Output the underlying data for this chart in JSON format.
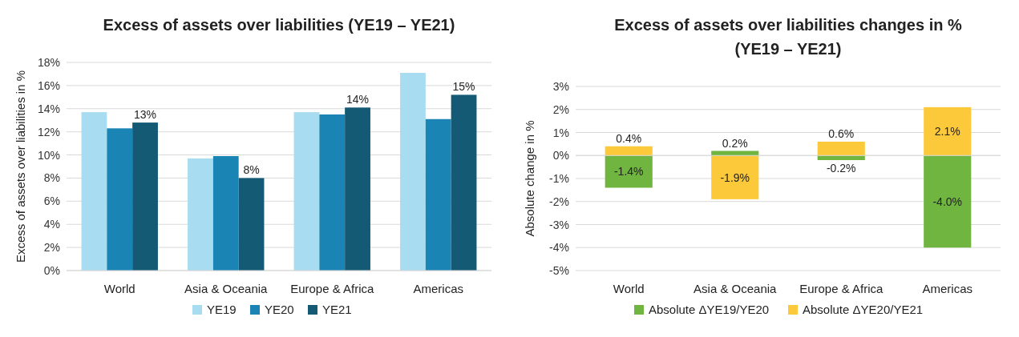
{
  "chart_data": [
    {
      "type": "bar",
      "title": "Excess of assets over liabilities (YE19 – YE21)",
      "ylabel": "Excess of assets over liabilities in %",
      "categories": [
        "World",
        "Asia & Oceania",
        "Europe & Africa",
        "Americas"
      ],
      "series": [
        {
          "name": "YE19",
          "color": "#a8dcf0",
          "values": [
            13.7,
            9.7,
            13.7,
            17.1
          ]
        },
        {
          "name": "YE20",
          "color": "#1a84b4",
          "values": [
            12.3,
            9.9,
            13.5,
            13.1
          ]
        },
        {
          "name": "YE21",
          "color": "#145a75",
          "values": [
            12.8,
            8.0,
            14.1,
            15.2
          ],
          "value_labels": [
            "13%",
            "8%",
            "14%",
            "15%"
          ]
        }
      ],
      "ylim": [
        0,
        18
      ],
      "yticks": [
        {
          "value": 0,
          "label": "0%"
        },
        {
          "value": 2,
          "label": "2%"
        },
        {
          "value": 4,
          "label": "4%"
        },
        {
          "value": 6,
          "label": "6%"
        },
        {
          "value": 8,
          "label": "8%"
        },
        {
          "value": 10,
          "label": "10%"
        },
        {
          "value": 12,
          "label": "12%"
        },
        {
          "value": 14,
          "label": "14%"
        },
        {
          "value": 16,
          "label": "16%"
        },
        {
          "value": 18,
          "label": "18%"
        }
      ],
      "grid": "y",
      "legend": "bottom"
    },
    {
      "type": "bar",
      "stacked": true,
      "title": "Excess of assets over liabilities changes in % (YE19 – YE21)",
      "ylabel": "Absolute change in %",
      "categories": [
        "World",
        "Asia & Oceania",
        "Europe & Africa",
        "Americas"
      ],
      "series": [
        {
          "name": "Absolute ΔYE19/YE20",
          "color": "#70b53f",
          "values": [
            -1.4,
            0.2,
            -0.2,
            -4.0
          ],
          "value_labels": [
            "-1.4%",
            "0.2%",
            "-0.2%",
            "-4.0%"
          ]
        },
        {
          "name": "Absolute ΔYE20/YE21",
          "color": "#fcc93a",
          "values": [
            0.4,
            -1.9,
            0.6,
            2.1
          ],
          "value_labels": [
            "0.4%",
            "-1.9%",
            "0.6%",
            "2.1%"
          ]
        }
      ],
      "ylim": [
        -5,
        3
      ],
      "yticks": [
        {
          "value": -5,
          "label": "-5%"
        },
        {
          "value": -4,
          "label": "-4%"
        },
        {
          "value": -3,
          "label": "-3%"
        },
        {
          "value": -2,
          "label": "-2%"
        },
        {
          "value": -1,
          "label": "-1%"
        },
        {
          "value": 0,
          "label": "0%"
        },
        {
          "value": 1,
          "label": "1%"
        },
        {
          "value": 2,
          "label": "2%"
        },
        {
          "value": 3,
          "label": "3%"
        }
      ],
      "grid": "y",
      "legend": "bottom"
    }
  ]
}
